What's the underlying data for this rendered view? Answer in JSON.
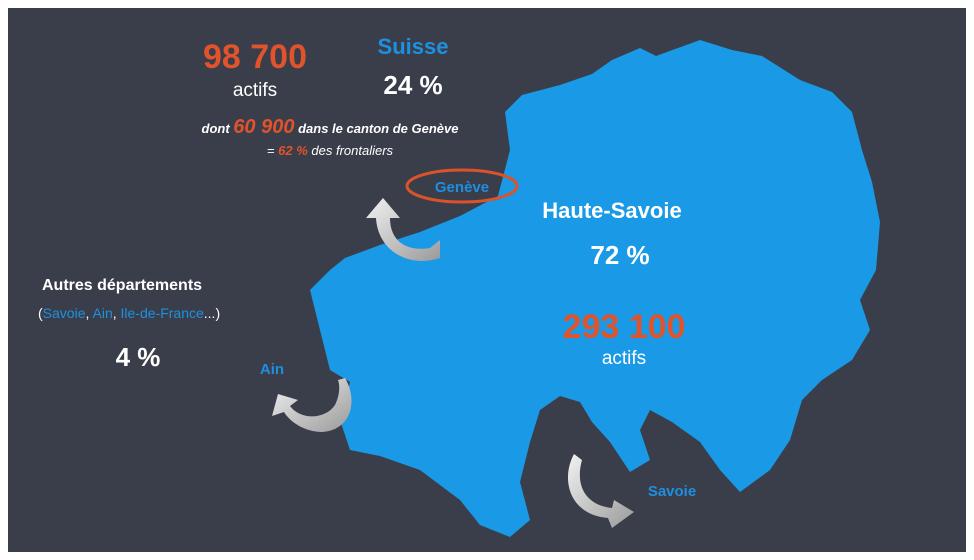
{
  "suisse": {
    "count": "98 700",
    "count_unit": "actifs",
    "label": "Suisse",
    "share": "24 %",
    "detail": {
      "prefix": "dont",
      "count": "60 900",
      "suffix": "dans le canton de Genève"
    },
    "ratio": {
      "prefix": "=",
      "share": "62 %",
      "suffix": "des frontaliers"
    }
  },
  "haute_savoie": {
    "label": "Haute-Savoie",
    "share": "72 %",
    "count": "293 100",
    "count_unit": "actifs"
  },
  "autres": {
    "label": "Autres départements",
    "examples": {
      "open": "(",
      "items": [
        "Savoie",
        "Ain",
        "Ile-de-France"
      ],
      "separator": ", ",
      "close": "...)"
    },
    "share": "4 %"
  },
  "places": {
    "geneve": "Genève",
    "ain": "Ain",
    "savoie": "Savoie"
  }
}
